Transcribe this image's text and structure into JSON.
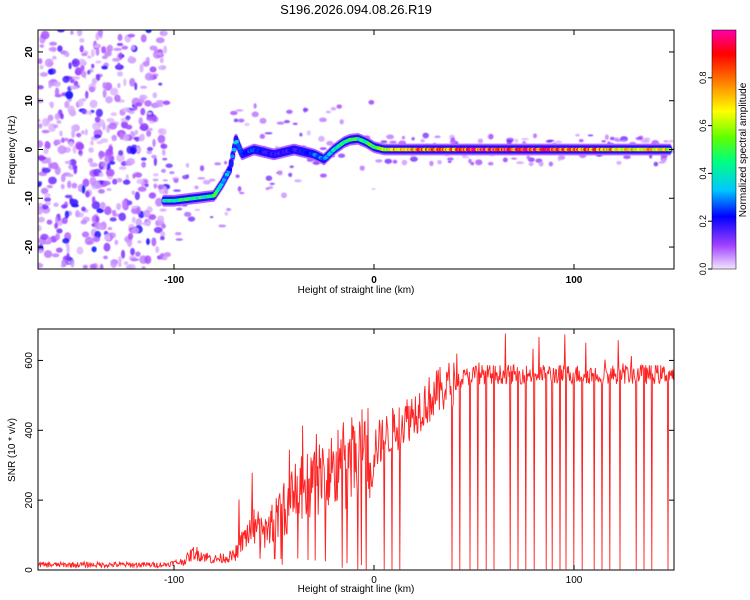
{
  "figure_title": "S196.2026.094.08.26.R19",
  "chart_data": [
    {
      "type": "heatmap",
      "title": "S196.2026.094.08.26.R19",
      "xlabel": "Height of straight line (km)",
      "ylabel": "Frequency (Hz)",
      "xlim": [
        -168,
        150
      ],
      "ylim": [
        -24.5,
        24.5
      ],
      "xticks": [
        -100,
        0,
        100
      ],
      "yticks": [
        -20,
        -10,
        0,
        10,
        20
      ],
      "colorbar": {
        "label": "Normalized spectral amplitude",
        "range": [
          0,
          1
        ],
        "ticks": [
          0.0,
          0.2,
          0.4,
          0.6,
          0.8
        ],
        "colors": [
          "#f4e6ff",
          "#a040ff",
          "#0000ff",
          "#00c8ff",
          "#00ff80",
          "#60ff00",
          "#ffff00",
          "#ff8000",
          "#ff0000",
          "#ff00aa"
        ]
      },
      "ridge": {
        "x": [
          -105,
          -100,
          -90,
          -80,
          -76,
          -72,
          -69,
          -66,
          -60,
          -50,
          -40,
          -30,
          -25,
          -20,
          -15,
          -12,
          -8,
          -4,
          0,
          5,
          20,
          50,
          80,
          110,
          148
        ],
        "y": [
          -10.5,
          -10.5,
          -10,
          -9.5,
          -7,
          -4,
          2,
          -1,
          0,
          -1,
          0,
          -1,
          -2,
          0,
          1.5,
          2,
          2.2,
          1.5,
          0.5,
          0,
          0,
          0,
          0,
          0,
          0
        ],
        "amplitude": [
          0.45,
          0.5,
          0.45,
          0.5,
          0.4,
          0.3,
          0.35,
          0.25,
          0.25,
          0.2,
          0.2,
          0.3,
          0.3,
          0.4,
          0.5,
          0.5,
          0.5,
          0.5,
          0.55,
          0.7,
          0.8,
          0.9,
          0.95,
          0.8,
          0.7
        ]
      }
    },
    {
      "type": "line",
      "xlabel": "Height of straight line (km)",
      "ylabel": "SNR (10 * v/v)",
      "xlim": [
        -168,
        150
      ],
      "ylim": [
        0,
        690
      ],
      "xticks": [
        -100,
        0,
        100
      ],
      "yticks": [
        0,
        200,
        400,
        600
      ],
      "color": "#ff2020",
      "envelope": {
        "x": [
          -168,
          -105,
          -95,
          -90,
          -80,
          -70,
          -65,
          -60,
          -55,
          -50,
          -40,
          -30,
          -20,
          -10,
          0,
          10,
          20,
          30,
          40,
          50,
          60,
          150
        ],
        "y": [
          15,
          15,
          25,
          50,
          30,
          40,
          90,
          130,
          100,
          140,
          210,
          250,
          280,
          310,
          350,
          400,
          450,
          500,
          540,
          560,
          560,
          560
        ]
      },
      "dropouts_x": [
        -8,
        -4,
        5,
        9,
        13,
        39,
        43,
        48,
        52,
        56,
        60,
        68,
        72,
        76,
        80,
        86,
        89,
        93,
        96,
        100,
        104,
        110,
        114,
        118,
        123,
        131,
        135,
        139,
        147
      ]
    }
  ]
}
